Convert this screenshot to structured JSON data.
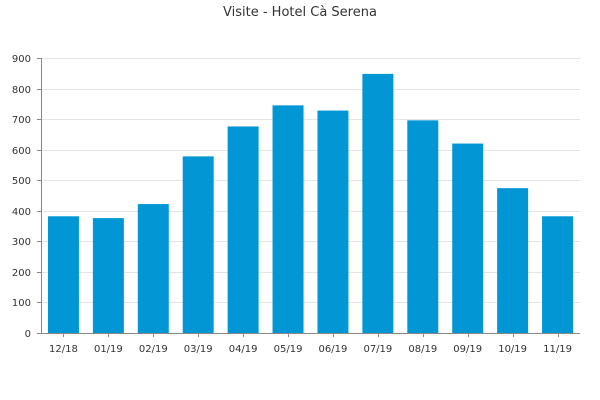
{
  "chart_data": {
    "type": "bar",
    "title": "Visite - Hotel Cà Serena",
    "xlabel": "",
    "ylabel": "",
    "categories": [
      "12/18",
      "01/19",
      "02/19",
      "03/19",
      "04/19",
      "05/19",
      "06/19",
      "07/19",
      "08/19",
      "09/19",
      "10/19",
      "11/19"
    ],
    "values": [
      382,
      376,
      422,
      578,
      676,
      745,
      728,
      848,
      696,
      620,
      474,
      382
    ],
    "ylim": [
      0,
      900
    ],
    "yticks": [
      0,
      100,
      200,
      300,
      400,
      500,
      600,
      700,
      800,
      900
    ],
    "grid": true,
    "legend": "none",
    "colors": {
      "bar": "#0396d4",
      "grid": "#e4e4e4",
      "axis": "#888888",
      "text": "#333333"
    }
  }
}
